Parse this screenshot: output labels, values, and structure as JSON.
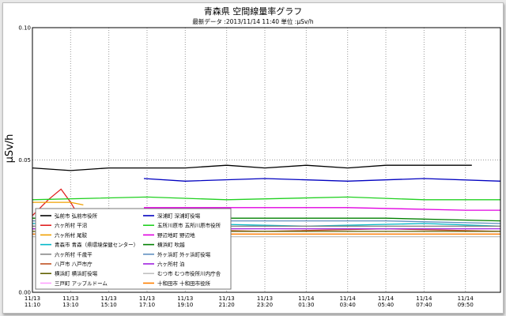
{
  "chart_data": {
    "type": "line",
    "title": "青森県 空間線量率グラフ",
    "subtitle": "最新データ :2013/11/14 11:40 単位 :μSv/h",
    "ylabel": "μSv/h",
    "xlabel": "",
    "ylim": [
      0,
      0.1
    ],
    "yticks": [
      "0.00",
      "0.05",
      "0.10"
    ],
    "grid": true,
    "legend_position": "bottom-left",
    "x_ticks": [
      {
        "date": "11/13",
        "time": "11:10"
      },
      {
        "date": "11/13",
        "time": "13:10"
      },
      {
        "date": "11/13",
        "time": "15:10"
      },
      {
        "date": "11/13",
        "time": "17:10"
      },
      {
        "date": "11/13",
        "time": "19:10"
      },
      {
        "date": "11/13",
        "time": "21:20"
      },
      {
        "date": "11/13",
        "time": "23:20"
      },
      {
        "date": "11/14",
        "time": "01:30"
      },
      {
        "date": "11/14",
        "time": "03:40"
      },
      {
        "date": "11/14",
        "time": "05:40"
      },
      {
        "date": "11/14",
        "time": "07:40"
      },
      {
        "date": "11/14",
        "time": "09:50"
      }
    ],
    "x_range": {
      "start": "2013-11-13 11:10",
      "end": "2013-11-14 11:40"
    },
    "series": [
      {
        "name": "弘前市 弘前市役所",
        "color": "#000000",
        "points": [
          [
            "2013-11-13 11:10",
            0.047
          ],
          [
            "2013-11-13 13:10",
            0.046
          ],
          [
            "2013-11-13 15:10",
            0.047
          ],
          [
            "2013-11-13 17:10",
            0.047
          ],
          [
            "2013-11-13 19:10",
            0.047
          ],
          [
            "2013-11-13 21:20",
            0.048
          ],
          [
            "2013-11-13 23:20",
            0.047
          ],
          [
            "2013-11-14 01:30",
            0.048
          ],
          [
            "2013-11-14 03:40",
            0.047
          ],
          [
            "2013-11-14 05:40",
            0.048
          ],
          [
            "2013-11-14 07:40",
            0.048
          ],
          [
            "2013-11-14 10:10",
            0.048
          ]
        ]
      },
      {
        "name": "六ヶ所村 平沼",
        "color": "#e02020",
        "points": [
          [
            "2013-11-13 11:10",
            0.029
          ],
          [
            "2013-11-13 12:00",
            0.035
          ],
          [
            "2013-11-13 12:40",
            0.039
          ],
          [
            "2013-11-13 13:10",
            0.034
          ],
          [
            "2013-11-13 13:40",
            0.028
          ]
        ]
      },
      {
        "name": "六ヶ所村 尾駮",
        "color": "#f0a000",
        "points": [
          [
            "2013-11-13 11:10",
            0.034
          ],
          [
            "2013-11-13 13:10",
            0.034
          ],
          [
            "2013-11-13 13:50",
            0.033
          ]
        ]
      },
      {
        "name": "青森市 青森（県環境保健センター）",
        "color": "#00b8c8",
        "points": [
          [
            "2013-11-13 11:10",
            0.026
          ],
          [
            "2013-11-13 15:10",
            0.026
          ],
          [
            "2013-11-13 19:10",
            0.026
          ],
          [
            "2013-11-14 01:30",
            0.025
          ],
          [
            "2013-11-14 07:40",
            0.026
          ],
          [
            "2013-11-14 11:40",
            0.025
          ]
        ]
      },
      {
        "name": "六ヶ所村 千歳平",
        "color": "#888888",
        "points": [
          [
            "2013-11-13 11:10",
            0.025
          ],
          [
            "2013-11-13 17:10",
            0.025
          ],
          [
            "2013-11-13 23:20",
            0.025
          ],
          [
            "2013-11-14 05:40",
            0.025
          ],
          [
            "2013-11-14 11:40",
            0.025
          ]
        ]
      },
      {
        "name": "八戸市 八戸市庁",
        "color": "#c05020",
        "points": [
          [
            "2013-11-13 11:10",
            0.024
          ],
          [
            "2013-11-13 17:10",
            0.024
          ],
          [
            "2013-11-13 23:20",
            0.023
          ],
          [
            "2013-11-14 05:40",
            0.024
          ],
          [
            "2013-11-14 11:40",
            0.023
          ]
        ]
      },
      {
        "name": "横浜町 横浜町役場",
        "color": "#606000",
        "points": [
          [
            "2013-11-13 11:10",
            0.023
          ],
          [
            "2013-11-13 17:10",
            0.023
          ],
          [
            "2013-11-13 23:20",
            0.023
          ],
          [
            "2013-11-14 05:40",
            0.023
          ],
          [
            "2013-11-14 11:40",
            0.023
          ]
        ]
      },
      {
        "name": "三戸町 アップルドーム",
        "color": "#ffa0ff",
        "points": [
          [
            "2013-11-13 11:10",
            0.022
          ],
          [
            "2013-11-13 17:10",
            0.022
          ],
          [
            "2013-11-13 23:20",
            0.022
          ],
          [
            "2013-11-14 05:40",
            0.022
          ],
          [
            "2013-11-14 11:40",
            0.022
          ]
        ]
      },
      {
        "name": "深浦町 深浦町役場",
        "color": "#0000c0",
        "points": [
          [
            "2013-11-13 17:00",
            0.043
          ],
          [
            "2013-11-13 19:10",
            0.042
          ],
          [
            "2013-11-13 23:20",
            0.043
          ],
          [
            "2013-11-14 03:40",
            0.042
          ],
          [
            "2013-11-14 07:40",
            0.043
          ],
          [
            "2013-11-14 11:40",
            0.042
          ]
        ]
      },
      {
        "name": "五所川原市 五所川原市役所",
        "color": "#20d020",
        "points": [
          [
            "2013-11-13 11:10",
            0.035
          ],
          [
            "2013-11-13 17:10",
            0.036
          ],
          [
            "2013-11-13 21:20",
            0.035
          ],
          [
            "2013-11-14 03:40",
            0.036
          ],
          [
            "2013-11-14 07:40",
            0.035
          ],
          [
            "2013-11-14 11:40",
            0.035
          ]
        ]
      },
      {
        "name": "野辺地町 野辺地",
        "color": "#e000e0",
        "points": [
          [
            "2013-11-13 17:00",
            0.032
          ],
          [
            "2013-11-13 21:20",
            0.032
          ],
          [
            "2013-11-14 03:40",
            0.032
          ],
          [
            "2013-11-14 09:50",
            0.031
          ],
          [
            "2013-11-14 11:40",
            0.031
          ]
        ]
      },
      {
        "name": "横浜町 吹越",
        "color": "#008000",
        "points": [
          [
            "2013-11-13 11:10",
            0.028
          ],
          [
            "2013-11-13 17:10",
            0.028
          ],
          [
            "2013-11-13 23:20",
            0.028
          ],
          [
            "2013-11-14 05:40",
            0.028
          ],
          [
            "2013-11-14 11:40",
            0.027
          ]
        ]
      },
      {
        "name": "外ヶ浜町 外ヶ浜町役場",
        "color": "#6090c0",
        "points": [
          [
            "2013-11-13 11:10",
            0.027
          ],
          [
            "2013-11-13 17:10",
            0.027
          ],
          [
            "2013-11-13 23:20",
            0.027
          ],
          [
            "2013-11-14 05:40",
            0.027
          ],
          [
            "2013-11-14 11:40",
            0.026
          ]
        ]
      },
      {
        "name": "六ヶ所村 泊",
        "color": "#a020e0",
        "points": [
          [
            "2013-11-13 11:10",
            0.024
          ],
          [
            "2013-11-13 17:10",
            0.024
          ],
          [
            "2013-11-13 23:20",
            0.024
          ],
          [
            "2013-11-14 05:40",
            0.024
          ],
          [
            "2013-11-14 11:40",
            0.024
          ]
        ]
      },
      {
        "name": "むつ市 むつ市役所川内庁舎",
        "color": "#c0c0c0",
        "points": [
          [
            "2013-11-13 11:10",
            0.021
          ],
          [
            "2013-11-13 17:10",
            0.021
          ],
          [
            "2013-11-13 23:20",
            0.021
          ],
          [
            "2013-11-14 05:40",
            0.021
          ],
          [
            "2013-11-14 11:40",
            0.021
          ]
        ]
      },
      {
        "name": "十和田市 十和田市役所",
        "color": "#ff8000",
        "points": [
          [
            "2013-11-13 11:10",
            0.022
          ],
          [
            "2013-11-13 17:10",
            0.022
          ],
          [
            "2013-11-13 23:20",
            0.022
          ],
          [
            "2013-11-14 05:40",
            0.022
          ],
          [
            "2013-11-14 11:40",
            0.022
          ]
        ]
      }
    ]
  }
}
